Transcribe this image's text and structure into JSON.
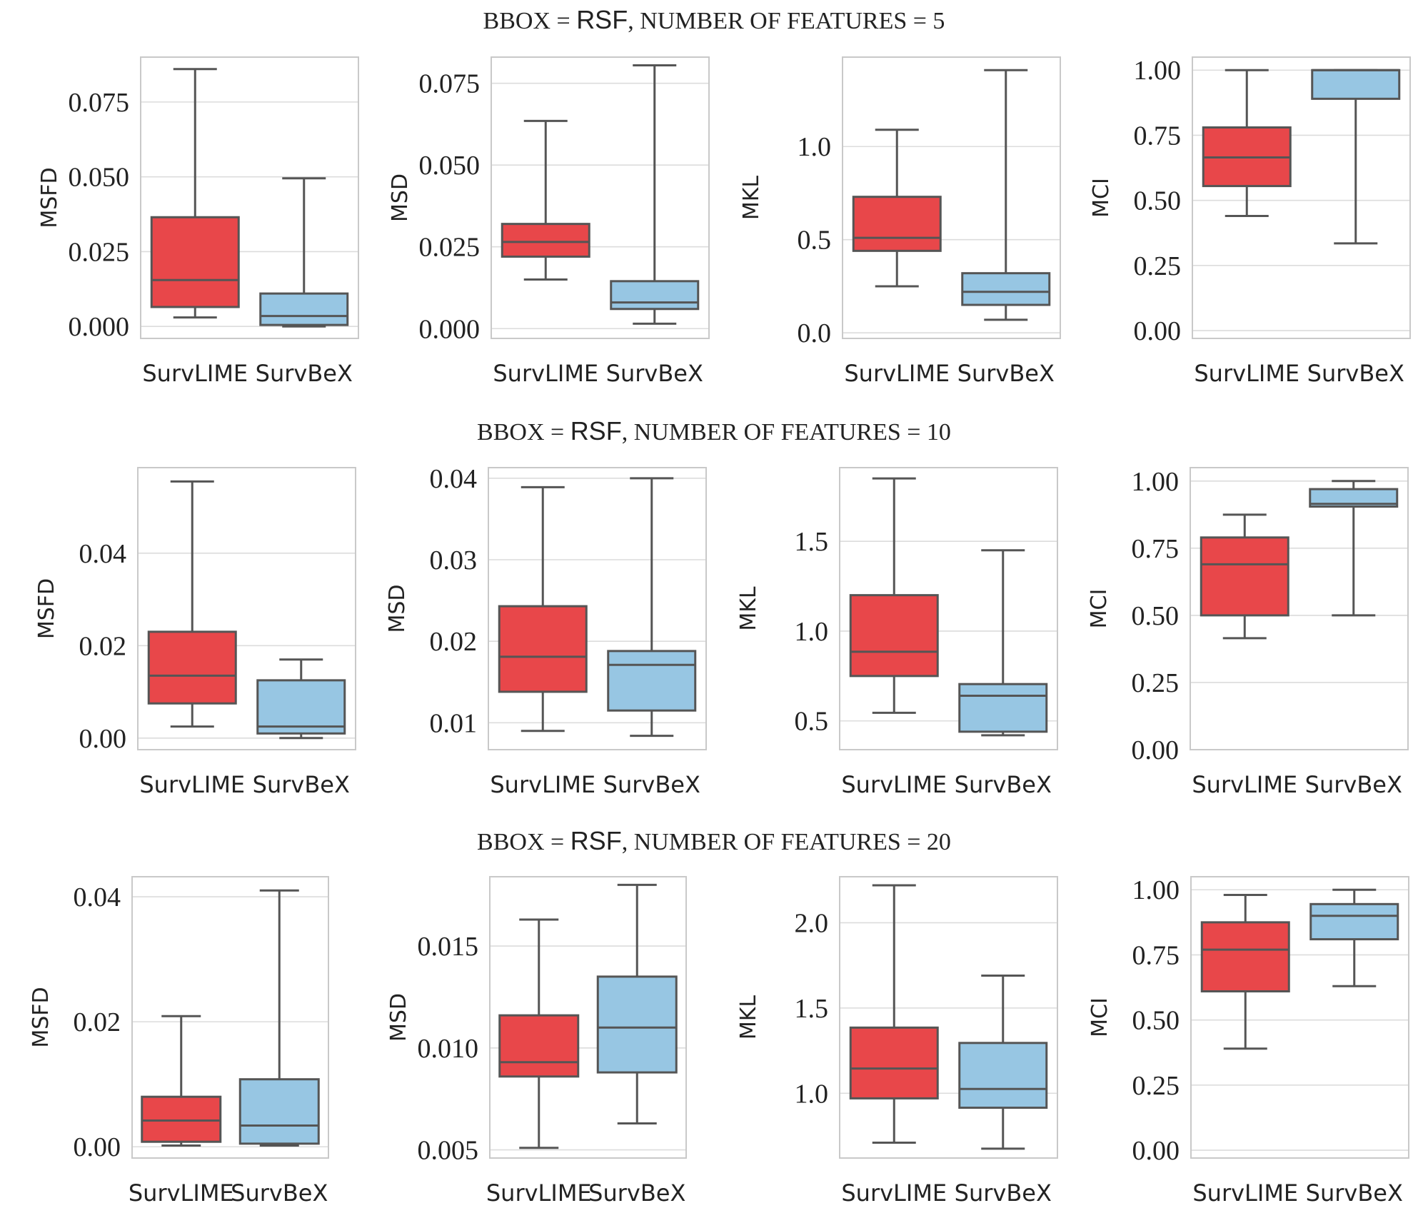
{
  "colors": {
    "survlime": "#e8474a",
    "survbex": "#97c6e3",
    "line": "#555555"
  },
  "rows": [
    {
      "title_prefix": "BBOX = ",
      "bbox": "RSF",
      "title_suffix": ",  NUMBER OF FEATURES = 5"
    },
    {
      "title_prefix": "BBOX = ",
      "bbox": "RSF",
      "title_suffix": ",  NUMBER OF FEATURES = 10"
    },
    {
      "title_prefix": "BBOX = ",
      "bbox": "RSF",
      "title_suffix": ", NUMBER OF FEATURES = 20"
    }
  ],
  "chart_data": [
    {
      "type": "box",
      "row": 0,
      "ylabel": "MSFD",
      "ylim": [
        -0.004,
        0.09
      ],
      "yticks": [
        0,
        0.025,
        0.05,
        0.075
      ],
      "yticklabels": [
        "0.000",
        "0.025",
        "0.050",
        "0.075"
      ],
      "categories": [
        "SurvLIME",
        "SurvBeX"
      ],
      "boxes": [
        {
          "name": "SurvLIME",
          "whislo": 0.003,
          "q1": 0.0065,
          "med": 0.0155,
          "q3": 0.0365,
          "whishi": 0.086
        },
        {
          "name": "SurvBeX",
          "whislo": 0.0,
          "q1": 0.0005,
          "med": 0.0035,
          "q3": 0.011,
          "whishi": 0.0495
        }
      ]
    },
    {
      "type": "box",
      "row": 0,
      "ylabel": "MSD",
      "ylim": [
        -0.003,
        0.083
      ],
      "yticks": [
        0,
        0.025,
        0.05,
        0.075
      ],
      "yticklabels": [
        "0.000",
        "0.025",
        "0.050",
        "0.075"
      ],
      "categories": [
        "SurvLIME",
        "SurvBeX"
      ],
      "boxes": [
        {
          "name": "SurvLIME",
          "whislo": 0.015,
          "q1": 0.022,
          "med": 0.0265,
          "q3": 0.032,
          "whishi": 0.0635
        },
        {
          "name": "SurvBeX",
          "whislo": 0.0015,
          "q1": 0.006,
          "med": 0.008,
          "q3": 0.0145,
          "whishi": 0.0805
        }
      ]
    },
    {
      "type": "box",
      "row": 0,
      "ylabel": "MKL",
      "ylim": [
        -0.03,
        1.48
      ],
      "yticks": [
        0,
        0.5,
        1.0
      ],
      "yticklabels": [
        "0.0",
        "0.5",
        "1.0"
      ],
      "categories": [
        "SurvLIME",
        "SurvBeX"
      ],
      "boxes": [
        {
          "name": "SurvLIME",
          "whislo": 0.25,
          "q1": 0.44,
          "med": 0.51,
          "q3": 0.73,
          "whishi": 1.09
        },
        {
          "name": "SurvBeX",
          "whislo": 0.07,
          "q1": 0.15,
          "med": 0.22,
          "q3": 0.32,
          "whishi": 1.41
        }
      ]
    },
    {
      "type": "box",
      "row": 0,
      "ylabel": "MCI",
      "ylim": [
        -0.03,
        1.05
      ],
      "yticks": [
        0,
        0.25,
        0.5,
        0.75,
        1.0
      ],
      "yticklabels": [
        "0.00",
        "0.25",
        "0.50",
        "0.75",
        "1.00"
      ],
      "categories": [
        "SurvLIME",
        "SurvBeX"
      ],
      "boxes": [
        {
          "name": "SurvLIME",
          "whislo": 0.44,
          "q1": 0.555,
          "med": 0.665,
          "q3": 0.78,
          "whishi": 1.0
        },
        {
          "name": "SurvBeX",
          "whislo": 0.335,
          "q1": 0.89,
          "med": 1.0,
          "q3": 1.0,
          "whishi": 1.0
        }
      ]
    },
    {
      "type": "box",
      "row": 1,
      "ylabel": "MSFD",
      "ylim": [
        -0.0025,
        0.0585
      ],
      "yticks": [
        0,
        0.02,
        0.04
      ],
      "yticklabels": [
        "0.00",
        "0.02",
        "0.04"
      ],
      "categories": [
        "SurvLIME",
        "SurvBeX"
      ],
      "boxes": [
        {
          "name": "SurvLIME",
          "whislo": 0.0025,
          "q1": 0.0075,
          "med": 0.0135,
          "q3": 0.023,
          "whishi": 0.0555
        },
        {
          "name": "SurvBeX",
          "whislo": 0.0,
          "q1": 0.001,
          "med": 0.0025,
          "q3": 0.0125,
          "whishi": 0.017
        }
      ]
    },
    {
      "type": "box",
      "row": 1,
      "ylabel": "MSD",
      "ylim": [
        0.0067,
        0.0413
      ],
      "yticks": [
        0.01,
        0.02,
        0.03,
        0.04
      ],
      "yticklabels": [
        "0.01",
        "0.02",
        "0.03",
        "0.04"
      ],
      "categories": [
        "SurvLIME",
        "SurvBeX"
      ],
      "boxes": [
        {
          "name": "SurvLIME",
          "whislo": 0.009,
          "q1": 0.0138,
          "med": 0.0181,
          "q3": 0.0243,
          "whishi": 0.0389
        },
        {
          "name": "SurvBeX",
          "whislo": 0.0084,
          "q1": 0.0115,
          "med": 0.0171,
          "q3": 0.0188,
          "whishi": 0.04
        }
      ]
    },
    {
      "type": "box",
      "row": 1,
      "ylabel": "MKL",
      "ylim": [
        0.34,
        1.91
      ],
      "yticks": [
        0.5,
        1.0,
        1.5
      ],
      "yticklabels": [
        "0.5",
        "1.0",
        "1.5"
      ],
      "categories": [
        "SurvLIME",
        "SurvBeX"
      ],
      "boxes": [
        {
          "name": "SurvLIME",
          "whislo": 0.545,
          "q1": 0.75,
          "med": 0.885,
          "q3": 1.2,
          "whishi": 1.85
        },
        {
          "name": "SurvBeX",
          "whislo": 0.42,
          "q1": 0.44,
          "med": 0.64,
          "q3": 0.705,
          "whishi": 1.45
        }
      ]
    },
    {
      "type": "box",
      "row": 1,
      "ylabel": "MCI",
      "ylim": [
        0.0,
        1.05
      ],
      "yticks": [
        0,
        0.25,
        0.5,
        0.75,
        1.0
      ],
      "yticklabels": [
        "0.00",
        "0.25",
        "0.50",
        "0.75",
        "1.00"
      ],
      "categories": [
        "SurvLIME",
        "SurvBeX"
      ],
      "boxes": [
        {
          "name": "SurvLIME",
          "whislo": 0.415,
          "q1": 0.5,
          "med": 0.69,
          "q3": 0.79,
          "whishi": 0.875
        },
        {
          "name": "SurvBeX",
          "whislo": 0.5,
          "q1": 0.905,
          "med": 0.915,
          "q3": 0.97,
          "whishi": 1.0
        }
      ]
    },
    {
      "type": "box",
      "row": 2,
      "ylabel": "MSFD",
      "ylim": [
        -0.0018,
        0.0432
      ],
      "yticks": [
        0,
        0.02,
        0.04
      ],
      "yticklabels": [
        "0.00",
        "0.02",
        "0.04"
      ],
      "categories": [
        "SurvLIME",
        "SurvBeX"
      ],
      "boxes": [
        {
          "name": "SurvLIME",
          "whislo": 0.0002,
          "q1": 0.0008,
          "med": 0.0042,
          "q3": 0.008,
          "whishi": 0.0209
        },
        {
          "name": "SurvBeX",
          "whislo": 0.0002,
          "q1": 0.0005,
          "med": 0.0034,
          "q3": 0.0108,
          "whishi": 0.041
        }
      ]
    },
    {
      "type": "box",
      "row": 2,
      "ylabel": "MSD",
      "ylim": [
        0.0046,
        0.0184
      ],
      "yticks": [
        0.005,
        0.01,
        0.015
      ],
      "yticklabels": [
        "0.005",
        "0.010",
        "0.015"
      ],
      "categories": [
        "SurvLIME",
        "SurvBeX"
      ],
      "boxes": [
        {
          "name": "SurvLIME",
          "whislo": 0.0051,
          "q1": 0.0086,
          "med": 0.0093,
          "q3": 0.0116,
          "whishi": 0.0163
        },
        {
          "name": "SurvBeX",
          "whislo": 0.0063,
          "q1": 0.0088,
          "med": 0.011,
          "q3": 0.0135,
          "whishi": 0.018
        }
      ]
    },
    {
      "type": "box",
      "row": 2,
      "ylabel": "MKL",
      "ylim": [
        0.62,
        2.27
      ],
      "yticks": [
        1.0,
        1.5,
        2.0
      ],
      "yticklabels": [
        "1.0",
        "1.5",
        "2.0"
      ],
      "categories": [
        "SurvLIME",
        "SurvBeX"
      ],
      "boxes": [
        {
          "name": "SurvLIME",
          "whislo": 0.71,
          "q1": 0.97,
          "med": 1.145,
          "q3": 1.385,
          "whishi": 2.22
        },
        {
          "name": "SurvBeX",
          "whislo": 0.675,
          "q1": 0.915,
          "med": 1.025,
          "q3": 1.295,
          "whishi": 1.69
        }
      ]
    },
    {
      "type": "box",
      "row": 2,
      "ylabel": "MCI",
      "ylim": [
        -0.03,
        1.05
      ],
      "yticks": [
        0,
        0.25,
        0.5,
        0.75,
        1.0
      ],
      "yticklabels": [
        "0.00",
        "0.25",
        "0.50",
        "0.75",
        "1.00"
      ],
      "categories": [
        "SurvLIME",
        "SurvBeX"
      ],
      "boxes": [
        {
          "name": "SurvLIME",
          "whislo": 0.39,
          "q1": 0.61,
          "med": 0.77,
          "q3": 0.875,
          "whishi": 0.98
        },
        {
          "name": "SurvBeX",
          "whislo": 0.63,
          "q1": 0.81,
          "med": 0.9,
          "q3": 0.945,
          "whishi": 1.0
        }
      ]
    }
  ]
}
